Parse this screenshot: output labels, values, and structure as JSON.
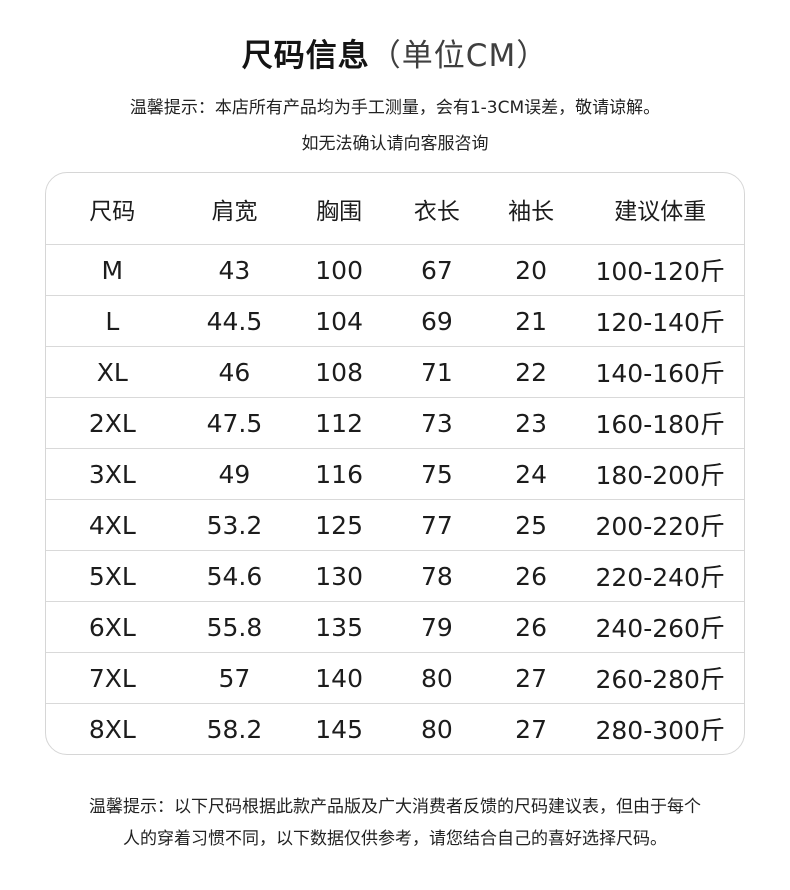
{
  "page": {
    "title": "尺码信息",
    "title_unit": "（单位CM）",
    "notice_line1": "温馨提示：本店所有产品均为手工测量，会有1-3CM误差，敬请谅解。",
    "notice_line2": "如无法确认请向客服咨询",
    "footer_line1": "温馨提示：以下尺码根据此款产品版及广大消费者反馈的尺码建议表，但由于每个",
    "footer_line2": "人的穿着习惯不同，以下数据仅供参考，请您结合自己的喜好选择尺码。"
  },
  "size_table": {
    "headers": [
      "尺码",
      "肩宽",
      "胸围",
      "衣长",
      "袖长",
      "建议体重"
    ],
    "rows": [
      [
        "M",
        "43",
        "100",
        "67",
        "20",
        "100-120斤"
      ],
      [
        "L",
        "44.5",
        "104",
        "69",
        "21",
        "120-140斤"
      ],
      [
        "XL",
        "46",
        "108",
        "71",
        "22",
        "140-160斤"
      ],
      [
        "2XL",
        "47.5",
        "112",
        "73",
        "23",
        "160-180斤"
      ],
      [
        "3XL",
        "49",
        "116",
        "75",
        "24",
        "180-200斤"
      ],
      [
        "4XL",
        "53.2",
        "125",
        "77",
        "25",
        "200-220斤"
      ],
      [
        "5XL",
        "54.6",
        "130",
        "78",
        "26",
        "220-240斤"
      ],
      [
        "6XL",
        "55.8",
        "135",
        "79",
        "26",
        "240-260斤"
      ],
      [
        "7XL",
        "57",
        "140",
        "80",
        "27",
        "260-280斤"
      ],
      [
        "8XL",
        "58.2",
        "145",
        "80",
        "27",
        "280-300斤"
      ]
    ]
  },
  "colors": {
    "text_primary": "#1c1c1c",
    "text_secondary": "#3f3f3f",
    "divider": "#d9d9d9",
    "card_border": "#d6d6d6",
    "background": "#ffffff"
  }
}
